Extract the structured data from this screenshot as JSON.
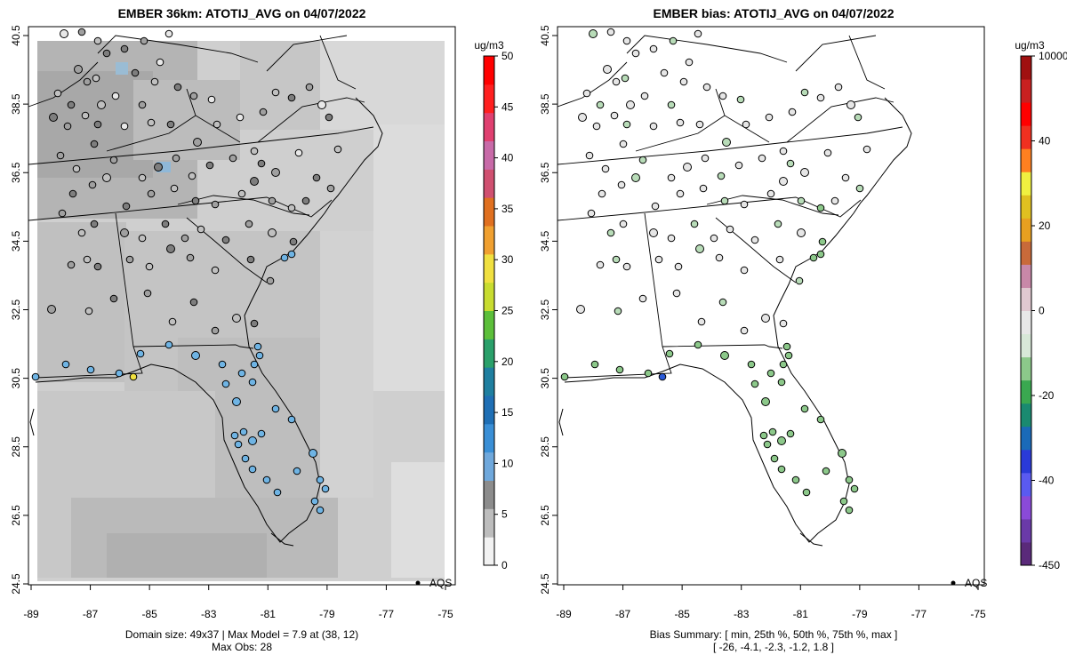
{
  "left_panel": {
    "title": "EMBER 36km: ATOTIJ_AVG on 04/07/2022",
    "footer_line1": "Domain size: 49x37 | Max Model = 7.9 at (38, 12)",
    "footer_line2": "Max Obs: 28",
    "legend_label": "AQS",
    "colorbar": {
      "unit": "ug/m3",
      "ticks": [
        "0",
        "5",
        "10",
        "15",
        "20",
        "25",
        "30",
        "35",
        "40",
        "45",
        "50"
      ],
      "colors": [
        "#f2f2f2",
        "#bdbdbd",
        "#8c8c8c",
        "#6fa8dc",
        "#3a8fd6",
        "#1f6fb5",
        "#1f7fa0",
        "#2aa06a",
        "#5cbf3a",
        "#c8dc30",
        "#f0e040",
        "#f0a030",
        "#e07020",
        "#d05070",
        "#c86aa8",
        "#e04070",
        "#ff2020",
        "#ff0000"
      ]
    }
  },
  "right_panel": {
    "title": "EMBER bias: ATOTIJ_AVG on 04/07/2022",
    "footer_line1": "Bias Summary: [ min, 25th %, 50th %, 75th %, max ]",
    "footer_line2": "[ -26,   -4.1,   -2.3,   -1.2,   1.8 ]",
    "legend_label": "AQS",
    "colorbar": {
      "unit": "ug/m3",
      "ticks": [
        "-450",
        "-40",
        "-20",
        "0",
        "20",
        "40",
        "10000"
      ],
      "colors": [
        "#5a2a7a",
        "#6a3aa8",
        "#8a4ad8",
        "#5a5af0",
        "#2a3ad8",
        "#1a6ab8",
        "#1a8a70",
        "#3aa850",
        "#8cc88a",
        "#d8e8d8",
        "#e8e8e8",
        "#e0c8d0",
        "#c888a8",
        "#c86a3a",
        "#e8a020",
        "#e0c020",
        "#f0f040",
        "#ff8020",
        "#f03020",
        "#ff0000",
        "#c82020",
        "#a01010"
      ]
    }
  },
  "axes": {
    "x_ticks": [
      "-89",
      "-87",
      "-85",
      "-83",
      "-81",
      "-79",
      "-77",
      "-75"
    ],
    "y_ticks": [
      "24.5",
      "26.5",
      "28.5",
      "30.5",
      "32.5",
      "34.5",
      "36.5",
      "38.5",
      "40.5"
    ]
  }
}
